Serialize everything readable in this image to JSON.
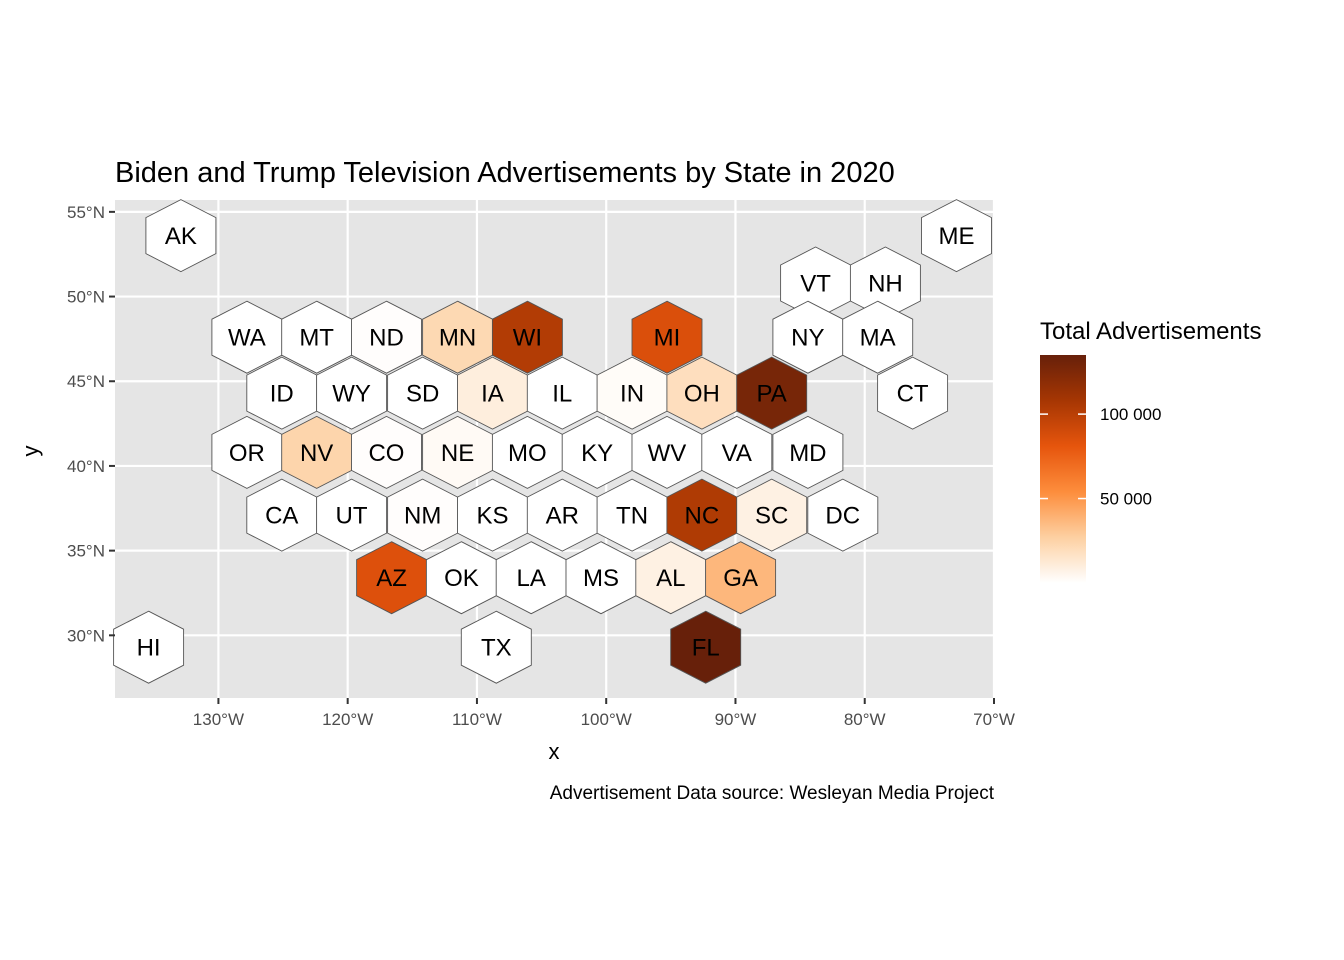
{
  "chart_data": {
    "type": "heatmap",
    "subtype": "hex-tile-map",
    "title": "Biden and Trump Television Advertisements by State in 2020",
    "xlabel": "x",
    "ylabel": "y",
    "caption": "Advertisement Data source: Wesleyan Media Project",
    "x_ticks": [
      -130,
      -120,
      -110,
      -100,
      -90,
      -80,
      -70
    ],
    "x_tick_labels": [
      "130°W",
      "120°W",
      "110°W",
      "100°W",
      "90°W",
      "80°W",
      "70°W"
    ],
    "y_ticks": [
      30,
      35,
      40,
      45,
      50,
      55
    ],
    "y_tick_labels": [
      "30°N",
      "35°N",
      "40°N",
      "45°N",
      "50°N",
      "55°N"
    ],
    "xlim": [
      -138,
      -70
    ],
    "ylim": [
      26.3,
      55.7
    ],
    "legend": {
      "title": "Total Advertisements",
      "breaks": [
        50000,
        100000
      ],
      "break_labels": [
        "50 000",
        "100 000"
      ],
      "range": [
        0,
        135000
      ],
      "colors": [
        "#ffffff",
        "#fdd0a2",
        "#fd8d3c",
        "#e6550d",
        "#a63603",
        "#67200a"
      ],
      "placement": "right"
    },
    "states": [
      {
        "abbr": "AK",
        "lon": -132.9,
        "lat": 53.6,
        "value": 0
      },
      {
        "abbr": "ME",
        "lon": -72.9,
        "lat": 53.6,
        "value": 0
      },
      {
        "abbr": "VT",
        "lon": -83.8,
        "lat": 50.8,
        "value": 0
      },
      {
        "abbr": "NH",
        "lon": -78.4,
        "lat": 50.8,
        "value": 0
      },
      {
        "abbr": "WA",
        "lon": -127.8,
        "lat": 47.6,
        "value": 0
      },
      {
        "abbr": "MT",
        "lon": -122.4,
        "lat": 47.6,
        "value": 0
      },
      {
        "abbr": "ND",
        "lon": -117.0,
        "lat": 47.6,
        "value": 1000
      },
      {
        "abbr": "MN",
        "lon": -111.5,
        "lat": 47.6,
        "value": 22000
      },
      {
        "abbr": "WI",
        "lon": -106.1,
        "lat": 47.6,
        "value": 103000
      },
      {
        "abbr": "MI",
        "lon": -95.3,
        "lat": 47.6,
        "value": 86000
      },
      {
        "abbr": "NY",
        "lon": -84.4,
        "lat": 47.6,
        "value": 0
      },
      {
        "abbr": "MA",
        "lon": -79.0,
        "lat": 47.6,
        "value": 0
      },
      {
        "abbr": "ID",
        "lon": -125.1,
        "lat": 44.3,
        "value": 0
      },
      {
        "abbr": "WY",
        "lon": -119.7,
        "lat": 44.3,
        "value": 0
      },
      {
        "abbr": "SD",
        "lon": -114.2,
        "lat": 44.3,
        "value": 0
      },
      {
        "abbr": "IA",
        "lon": -108.8,
        "lat": 44.3,
        "value": 10000
      },
      {
        "abbr": "IL",
        "lon": -103.4,
        "lat": 44.3,
        "value": 0
      },
      {
        "abbr": "IN",
        "lon": -98.0,
        "lat": 44.3,
        "value": 2000
      },
      {
        "abbr": "OH",
        "lon": -92.6,
        "lat": 44.3,
        "value": 19000
      },
      {
        "abbr": "PA",
        "lon": -87.2,
        "lat": 44.3,
        "value": 128000
      },
      {
        "abbr": "CT",
        "lon": -76.3,
        "lat": 44.3,
        "value": 0
      },
      {
        "abbr": "OR",
        "lon": -127.8,
        "lat": 40.8,
        "value": 0
      },
      {
        "abbr": "NV",
        "lon": -122.4,
        "lat": 40.8,
        "value": 24000
      },
      {
        "abbr": "CO",
        "lon": -117.0,
        "lat": 40.8,
        "value": 1000
      },
      {
        "abbr": "NE",
        "lon": -111.5,
        "lat": 40.8,
        "value": 3000
      },
      {
        "abbr": "MO",
        "lon": -106.1,
        "lat": 40.8,
        "value": 0
      },
      {
        "abbr": "KY",
        "lon": -100.7,
        "lat": 40.8,
        "value": 0
      },
      {
        "abbr": "WV",
        "lon": -95.3,
        "lat": 40.8,
        "value": 0
      },
      {
        "abbr": "VA",
        "lon": -89.9,
        "lat": 40.8,
        "value": 0
      },
      {
        "abbr": "MD",
        "lon": -84.4,
        "lat": 40.8,
        "value": 0
      },
      {
        "abbr": "CA",
        "lon": -125.1,
        "lat": 37.1,
        "value": 0
      },
      {
        "abbr": "UT",
        "lon": -119.7,
        "lat": 37.1,
        "value": 0
      },
      {
        "abbr": "NM",
        "lon": -114.2,
        "lat": 37.1,
        "value": 1000
      },
      {
        "abbr": "KS",
        "lon": -108.8,
        "lat": 37.1,
        "value": 0
      },
      {
        "abbr": "AR",
        "lon": -103.4,
        "lat": 37.1,
        "value": 0
      },
      {
        "abbr": "TN",
        "lon": -98.0,
        "lat": 37.1,
        "value": 0
      },
      {
        "abbr": "NC",
        "lon": -92.6,
        "lat": 37.1,
        "value": 104000
      },
      {
        "abbr": "SC",
        "lon": -87.2,
        "lat": 37.1,
        "value": 8000
      },
      {
        "abbr": "DC",
        "lon": -81.7,
        "lat": 37.1,
        "value": 0
      },
      {
        "abbr": "AZ",
        "lon": -116.6,
        "lat": 33.4,
        "value": 85000
      },
      {
        "abbr": "OK",
        "lon": -111.2,
        "lat": 33.4,
        "value": 0
      },
      {
        "abbr": "LA",
        "lon": -105.8,
        "lat": 33.4,
        "value": 0
      },
      {
        "abbr": "MS",
        "lon": -100.4,
        "lat": 33.4,
        "value": 0
      },
      {
        "abbr": "AL",
        "lon": -95.0,
        "lat": 33.4,
        "value": 8000
      },
      {
        "abbr": "GA",
        "lon": -89.6,
        "lat": 33.4,
        "value": 37000
      },
      {
        "abbr": "TX",
        "lon": -108.5,
        "lat": 29.3,
        "value": 0
      },
      {
        "abbr": "FL",
        "lon": -92.3,
        "lat": 29.3,
        "value": 135000
      },
      {
        "abbr": "HI",
        "lon": -135.4,
        "lat": 29.3,
        "value": 0
      }
    ]
  }
}
